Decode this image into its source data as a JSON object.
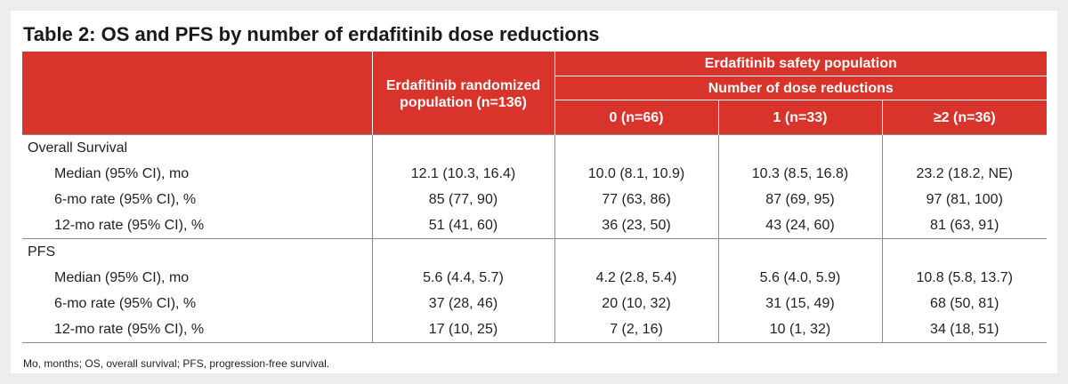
{
  "title": "Table 2: OS and PFS by number of erdafitinib dose reductions",
  "header": {
    "randomized": "Erdafitinib randomized population (n=136)",
    "safety": "Erdafitinib safety population",
    "dose_reductions": "Number of dose reductions",
    "col_0": "0 (n=66)",
    "col_1": "1 (n=33)",
    "col_2": "≥2 (n=36)"
  },
  "sections": [
    {
      "name": "Overall Survival",
      "rows": [
        {
          "label": "Median (95% CI), mo",
          "values": [
            "12.1 (10.3, 16.4)",
            "10.0 (8.1, 10.9)",
            "10.3 (8.5, 16.8)",
            "23.2 (18.2, NE)"
          ]
        },
        {
          "label": "6-mo rate (95% CI), %",
          "values": [
            "85 (77, 90)",
            "77 (63, 86)",
            "87 (69, 95)",
            "97 (81, 100)"
          ]
        },
        {
          "label": "12-mo rate (95% CI), %",
          "values": [
            "51 (41, 60)",
            "36 (23, 50)",
            "43 (24, 60)",
            "81 (63, 91)"
          ]
        }
      ]
    },
    {
      "name": "PFS",
      "rows": [
        {
          "label": "Median (95% CI), mo",
          "values": [
            "5.6 (4.4, 5.7)",
            "4.2 (2.8, 5.4)",
            "5.6 (4.0, 5.9)",
            "10.8 (5.8, 13.7)"
          ]
        },
        {
          "label": "6-mo rate (95% CI), %",
          "values": [
            "37 (28, 46)",
            "20 (10, 32)",
            "31 (15, 49)",
            "68 (50, 81)"
          ]
        },
        {
          "label": "12-mo rate (95% CI), %",
          "values": [
            "17 (10, 25)",
            "7 (2, 16)",
            "10 (1, 32)",
            "34 (18, 51)"
          ]
        }
      ]
    }
  ],
  "footnote": "Mo, months; OS, overall survival; PFS, progression-free survival.",
  "colors": {
    "header_red": "#d9342b",
    "background": "#eeedeb"
  }
}
